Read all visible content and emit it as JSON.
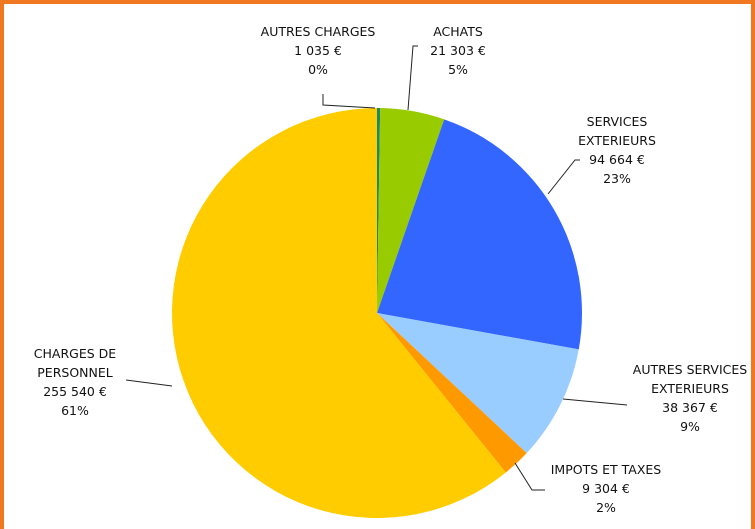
{
  "chart_data": {
    "type": "pie",
    "categories": [
      "AUTRES CHARGES",
      "ACHATS",
      "SERVICES EXTERIEURS",
      "AUTRES SERVICES EXTERIEURS",
      "IMPOTS ET TAXES",
      "CHARGES DE PERSONNEL"
    ],
    "values": [
      1035,
      21303,
      94664,
      38367,
      9304,
      255540
    ],
    "value_labels": [
      "1 035 €",
      "21 303 €",
      "94 664 €",
      "38 367 €",
      "9 304 €",
      "255 540 €"
    ],
    "percentages": [
      0,
      5,
      23,
      9,
      2,
      61
    ],
    "percentage_labels": [
      "0%",
      "5%",
      "23%",
      "9%",
      "2%",
      "61%"
    ],
    "colors": [
      "#1a8a6a",
      "#99cc00",
      "#3366ff",
      "#99ccff",
      "#ff9900",
      "#ffcc00"
    ]
  }
}
